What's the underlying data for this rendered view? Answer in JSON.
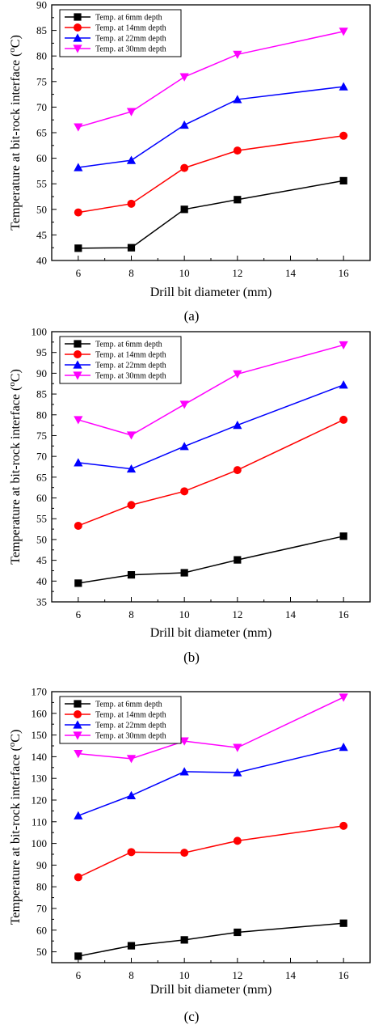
{
  "chart_data": [
    {
      "type": "line",
      "caption": "(a)",
      "xlabel": "Drill bit diameter (mm)",
      "ylabel_prefix": "Temperature at bit-rock interface (",
      "ylabel_sup": "o",
      "ylabel_suffix": "C)",
      "xlim": [
        5,
        17
      ],
      "ylim": [
        40,
        90
      ],
      "xticks": [
        6,
        8,
        10,
        12,
        14,
        16
      ],
      "yticks": [
        40,
        45,
        50,
        55,
        60,
        65,
        70,
        75,
        80,
        85,
        90
      ],
      "x": [
        6,
        8,
        10,
        12,
        16
      ],
      "legend_position": "top-left",
      "grid": false,
      "series": [
        {
          "name": "Temp. at 6mm depth",
          "color": "#000000",
          "marker": "square",
          "values": [
            42.4,
            42.5,
            50.0,
            51.9,
            55.6
          ]
        },
        {
          "name": "Temp. at 14mm depth",
          "color": "#ff0000",
          "marker": "circle",
          "values": [
            49.4,
            51.1,
            58.1,
            61.5,
            64.4
          ]
        },
        {
          "name": "Temp. at 22mm depth",
          "color": "#0000ff",
          "marker": "triangle-up",
          "values": [
            58.2,
            59.6,
            66.5,
            71.5,
            74.0
          ]
        },
        {
          "name": "Temp. at 30mm depth",
          "color": "#ff00ff",
          "marker": "triangle-down",
          "values": [
            66.1,
            69.1,
            75.9,
            80.3,
            84.8
          ]
        }
      ]
    },
    {
      "type": "line",
      "caption": "(b)",
      "xlabel": "Drill bit diameter (mm)",
      "ylabel_prefix": "Temperature at bit-rock interface (",
      "ylabel_sup": "o",
      "ylabel_suffix": "C)",
      "xlim": [
        5,
        17
      ],
      "ylim": [
        35,
        100
      ],
      "xticks": [
        6,
        8,
        10,
        12,
        14,
        16
      ],
      "yticks": [
        35,
        40,
        45,
        50,
        55,
        60,
        65,
        70,
        75,
        80,
        85,
        90,
        95,
        100
      ],
      "x": [
        6,
        8,
        10,
        12,
        16
      ],
      "legend_position": "top-left",
      "grid": false,
      "series": [
        {
          "name": "Temp. at 6mm depth",
          "color": "#000000",
          "marker": "square",
          "values": [
            39.5,
            41.5,
            42.0,
            45.1,
            50.8
          ]
        },
        {
          "name": "Temp. at 14mm depth",
          "color": "#ff0000",
          "marker": "circle",
          "values": [
            53.3,
            58.3,
            61.6,
            66.7,
            78.8
          ]
        },
        {
          "name": "Temp. at 22mm depth",
          "color": "#0000ff",
          "marker": "triangle-up",
          "values": [
            68.5,
            67.0,
            72.4,
            77.5,
            87.2
          ]
        },
        {
          "name": "Temp. at 30mm depth",
          "color": "#ff00ff",
          "marker": "triangle-down",
          "values": [
            78.8,
            75.1,
            82.5,
            89.8,
            96.8
          ]
        }
      ]
    },
    {
      "type": "line",
      "caption": "(c)",
      "xlabel": "Drill bit diameter (mm)",
      "ylabel_prefix": "Temperature at bit-rock interface (",
      "ylabel_sup": "o",
      "ylabel_suffix": "C)",
      "xlim": [
        5,
        17
      ],
      "ylim": [
        45,
        170
      ],
      "xticks": [
        6,
        8,
        10,
        12,
        14,
        16
      ],
      "yticks": [
        50,
        60,
        70,
        80,
        90,
        100,
        110,
        120,
        130,
        140,
        150,
        160,
        170
      ],
      "x": [
        6,
        8,
        10,
        12,
        16
      ],
      "legend_position": "top-left",
      "grid": false,
      "series": [
        {
          "name": "Temp. at 6mm depth",
          "color": "#000000",
          "marker": "square",
          "values": [
            48.0,
            52.8,
            55.5,
            59.0,
            63.2
          ]
        },
        {
          "name": "Temp. at 14mm depth",
          "color": "#ff0000",
          "marker": "circle",
          "values": [
            84.4,
            96.0,
            95.7,
            101.2,
            108.1
          ]
        },
        {
          "name": "Temp. at 22mm depth",
          "color": "#0000ff",
          "marker": "triangle-up",
          "values": [
            112.8,
            122.1,
            133.1,
            132.7,
            144.4
          ]
        },
        {
          "name": "Temp. at 30mm depth",
          "color": "#ff00ff",
          "marker": "triangle-down",
          "values": [
            141.4,
            139.1,
            147.2,
            144.2,
            167.4
          ]
        }
      ]
    }
  ]
}
